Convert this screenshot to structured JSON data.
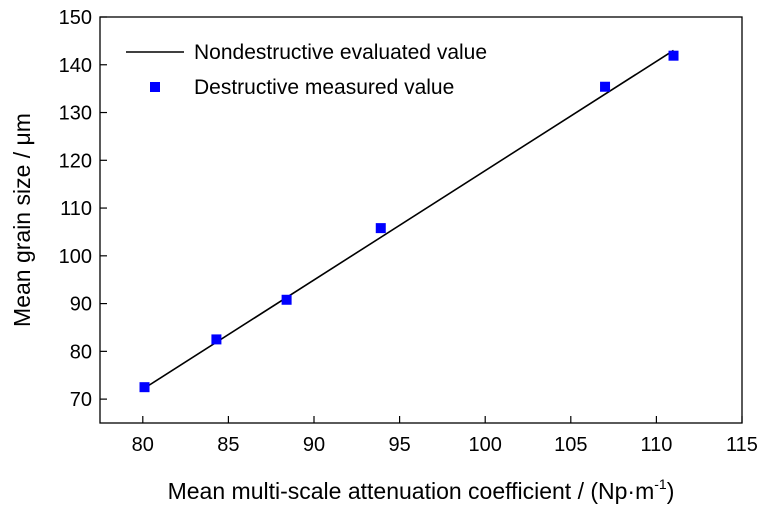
{
  "chart_data": {
    "type": "scatter",
    "xlabel": "Mean multi-scale attenuation coefficient / (Np·m",
    "xlabel_superscript": "-1",
    "xlabel_suffix": ")",
    "ylabel": "Mean grain size / μm",
    "xlim": [
      77.5,
      115
    ],
    "ylim": [
      65,
      150
    ],
    "xticks": [
      80,
      85,
      90,
      95,
      100,
      105,
      110,
      115
    ],
    "yticks": [
      70,
      80,
      90,
      100,
      110,
      120,
      130,
      140,
      150
    ],
    "grid": false,
    "legend_position": "top-left",
    "legend": [
      {
        "label": "Nondestructive evaluated value",
        "style": "line",
        "color": "#000000"
      },
      {
        "label": "Destructive measured value",
        "style": "square",
        "color": "#0000ff"
      }
    ],
    "series": [
      {
        "name": "Nondestructive evaluated value",
        "kind": "line",
        "color": "#000000",
        "x": [
          80.1,
          111.0
        ],
        "y": [
          72.3,
          143.0
        ]
      },
      {
        "name": "Destructive measured value",
        "kind": "scatter",
        "color": "#0000ff",
        "x": [
          80.1,
          84.3,
          88.4,
          93.9,
          107.0,
          111.0
        ],
        "y": [
          72.5,
          82.5,
          90.8,
          105.8,
          135.4,
          141.9
        ]
      }
    ]
  }
}
